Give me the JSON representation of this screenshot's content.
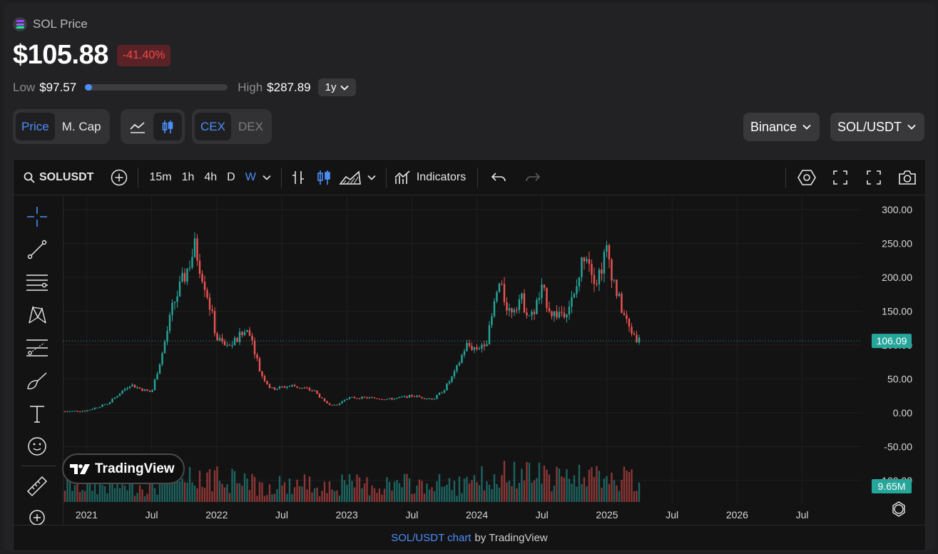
{
  "header": {
    "symbol_label": "SOL Price",
    "price": "$105.88",
    "change": "-41.40%",
    "low_label": "Low",
    "low_value": "$97.57",
    "high_label": "High",
    "high_value": "$287.89",
    "range_position_fraction": 0.044,
    "period": "1y"
  },
  "toggles": {
    "price": "Price",
    "mcap": "M. Cap",
    "cex": "CEX",
    "dex": "DEX"
  },
  "exchange": "Binance",
  "pair": "SOL/USDT",
  "toolbar": {
    "symbol": "SOLUSDT",
    "timeframes": [
      "15m",
      "1h",
      "4h",
      "D",
      "W"
    ],
    "active_timeframe": "W",
    "indicators": "Indicators"
  },
  "colors": {
    "up": "#26a69a",
    "down": "#ef5350",
    "accent": "#4c8ef7",
    "last_price_label": "#26a69a"
  },
  "chart_data": {
    "type": "candlestick",
    "x_ticks": [
      "2021",
      "Jul",
      "2022",
      "Jul",
      "2023",
      "Jul",
      "2024",
      "Jul",
      "2025",
      "Jul",
      "2026",
      "Jul"
    ],
    "y_ticks": [
      "300.00",
      "250.00",
      "200.00",
      "150.00",
      "100.00",
      "50.00",
      "0.00",
      "-50.00",
      "-100.00"
    ],
    "ylim": [
      -135,
      320
    ],
    "last_price": "106.09",
    "volume_last": "9.65M",
    "price_path": [
      [
        "2020-11",
        2
      ],
      [
        "2021-01",
        3
      ],
      [
        "2021-03",
        14
      ],
      [
        "2021-05",
        42
      ],
      [
        "2021-06",
        35
      ],
      [
        "2021-07",
        30
      ],
      [
        "2021-08",
        90
      ],
      [
        "2021-09",
        160
      ],
      [
        "2021-10",
        200
      ],
      [
        "2021-11",
        245
      ],
      [
        "2021-12",
        185
      ],
      [
        "2022-01",
        110
      ],
      [
        "2022-02",
        95
      ],
      [
        "2022-03",
        110
      ],
      [
        "2022-04",
        125
      ],
      [
        "2022-05",
        60
      ],
      [
        "2022-06",
        35
      ],
      [
        "2022-08",
        40
      ],
      [
        "2022-10",
        32
      ],
      [
        "2022-11",
        15
      ],
      [
        "2022-12",
        10
      ],
      [
        "2023-01",
        22
      ],
      [
        "2023-03",
        22
      ],
      [
        "2023-05",
        20
      ],
      [
        "2023-07",
        25
      ],
      [
        "2023-09",
        20
      ],
      [
        "2023-10",
        35
      ],
      [
        "2023-11",
        60
      ],
      [
        "2023-12",
        100
      ],
      [
        "2024-01",
        95
      ],
      [
        "2024-02",
        110
      ],
      [
        "2024-03",
        190
      ],
      [
        "2024-04",
        150
      ],
      [
        "2024-05",
        170
      ],
      [
        "2024-06",
        140
      ],
      [
        "2024-07",
        180
      ],
      [
        "2024-08",
        145
      ],
      [
        "2024-09",
        150
      ],
      [
        "2024-10",
        170
      ],
      [
        "2024-11",
        245
      ],
      [
        "2024-12",
        195
      ],
      [
        "2025-01",
        240
      ],
      [
        "2025-02",
        170
      ],
      [
        "2025-03",
        125
      ],
      [
        "2025-04",
        106
      ]
    ]
  },
  "footer": {
    "link": "SOL/USDT chart",
    "by": "by TradingView"
  },
  "tv_badge": "TradingView"
}
